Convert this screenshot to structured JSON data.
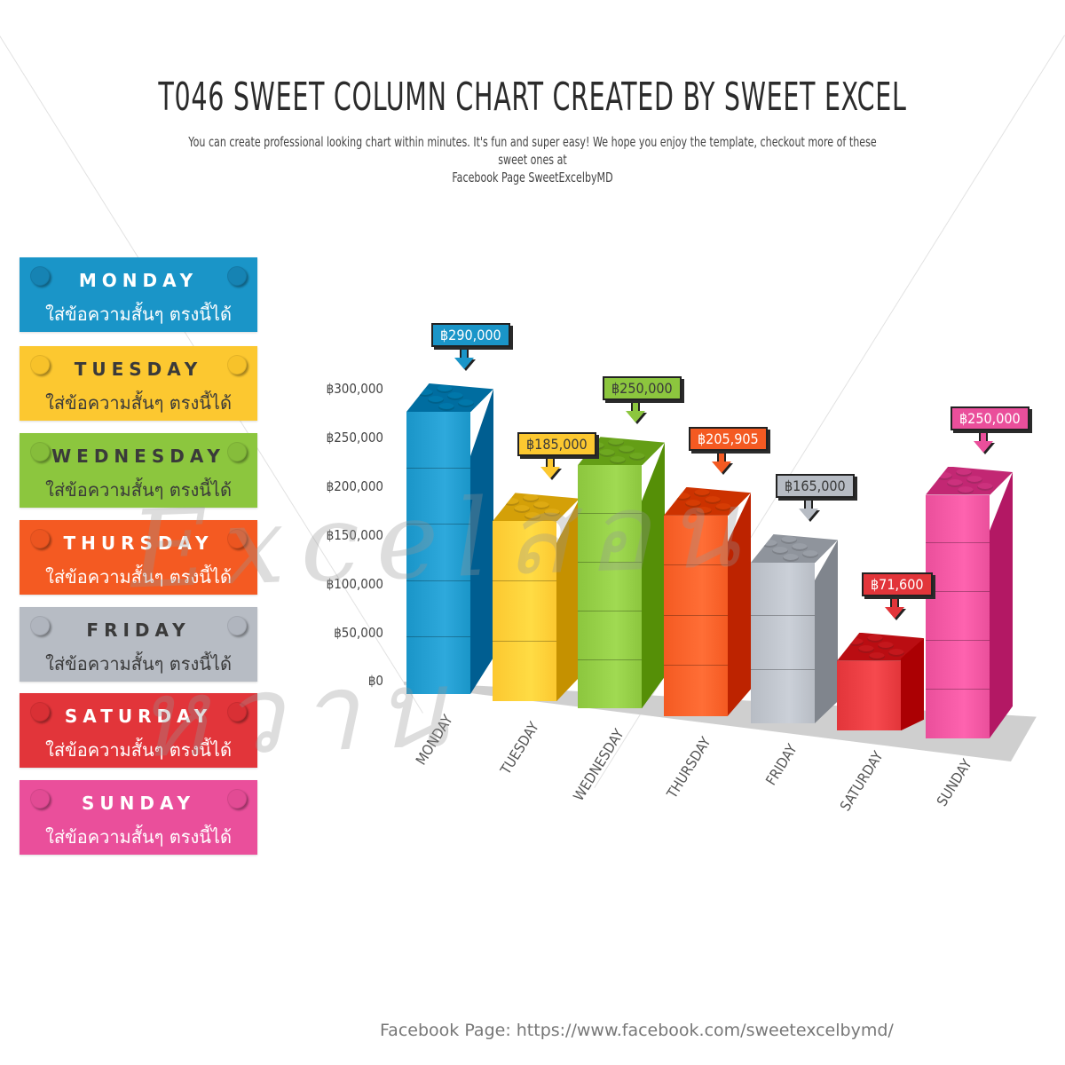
{
  "header": {
    "title": "T046 SWEET COLUMN CHART CREATED BY SWEET EXCEL",
    "subtitle_line1": "You can create professional looking chart within minutes. It's fun and super easy! We hope you enjoy the template, checkout more of these sweet ones at",
    "subtitle_line2": "Facebook Page SweetExcelbyMD"
  },
  "legend": {
    "cards": [
      {
        "day": "MONDAY",
        "note": "ใส่ข้อความสั้นๆ ตรงนี้ได้",
        "bg": "#1a95c8",
        "text": "#ffffff",
        "dot": "#1683b3"
      },
      {
        "day": "TUESDAY",
        "note": "ใส่ข้อความสั้นๆ ตรงนี้ได้",
        "bg": "#fcc830",
        "text": "#3a3a3a",
        "dot": "#f7c22a"
      },
      {
        "day": "WEDNESDAY",
        "note": "ใส่ข้อความสั้นๆ ตรงนี้ได้",
        "bg": "#8cc63e",
        "text": "#3a3a3a",
        "dot": "#86bd3b"
      },
      {
        "day": "THURSDAY",
        "note": "ใส่ข้อความสั้นๆ ตรงนี้ได้",
        "bg": "#f45a22",
        "text": "#ffffff",
        "dot": "#ec5520"
      },
      {
        "day": "FRIDAY",
        "note": "ใส่ข้อความสั้นๆ ตรงนี้ได้",
        "bg": "#b7bcc4",
        "text": "#3a3a3a",
        "dot": "#b0b5be"
      },
      {
        "day": "SATURDAY",
        "note": "ใส่ข้อความสั้นๆ ตรงนี้ได้",
        "bg": "#e2353a",
        "text": "#ffffff",
        "dot": "#d93035"
      },
      {
        "day": "SUNDAY",
        "note": "ใส่ข้อความสั้นๆ ตรงนี้ได้",
        "bg": "#ea4f9b",
        "text": "#ffffff",
        "dot": "#e24b94"
      }
    ]
  },
  "watermark": "Excelสอนหวาน",
  "footer": "Facebook Page: https://www.facebook.com/sweetexcelbymd/",
  "chart_data": {
    "type": "bar",
    "title": "T046 SWEET COLUMN CHART CREATED BY SWEET EXCEL",
    "xlabel": "",
    "ylabel": "",
    "ylim": [
      0,
      300000
    ],
    "yticks": [
      "฿0",
      "฿50,000",
      "฿100,000",
      "฿150,000",
      "฿200,000",
      "฿250,000",
      "฿300,000"
    ],
    "grid": false,
    "legend_position": "left",
    "categories": [
      "MONDAY",
      "TUESDAY",
      "WEDNESDAY",
      "THURSDAY",
      "FRIDAY",
      "SATURDAY",
      "SUNDAY"
    ],
    "values": [
      290000,
      185000,
      250000,
      205905,
      165000,
      71600,
      250000
    ],
    "labels": [
      "฿290,000",
      "฿185,000",
      "฿250,000",
      "฿205,905",
      "฿165,000",
      "฿71,600",
      "฿250,000"
    ],
    "colors": [
      "#1a95c8",
      "#fcc830",
      "#8cc63e",
      "#f45a22",
      "#b7bcc4",
      "#e2353a",
      "#ea4f9b"
    ],
    "label_text_colors": [
      "#ffffff",
      "#3a3a3a",
      "#3a3a3a",
      "#ffffff",
      "#3a3a3a",
      "#ffffff",
      "#ffffff"
    ]
  }
}
